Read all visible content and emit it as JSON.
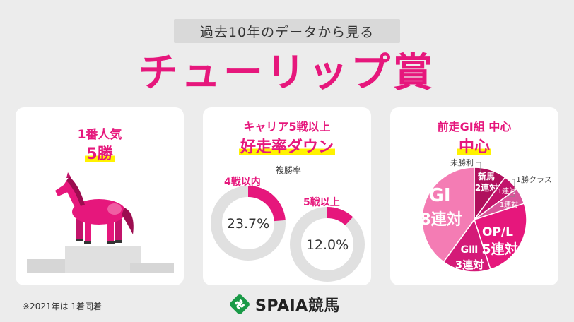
{
  "header": {
    "subtitle": "過去10年のデータから見る",
    "title": "チューリップ賞"
  },
  "panel_favorite": {
    "line1": "1番人気",
    "line2": "5勝",
    "icon": "horse-on-podium-icon"
  },
  "panel_career": {
    "line1": "キャリア5戦以上",
    "line2": "好走率ダウン",
    "metric_label": "複勝率",
    "rings": [
      {
        "label": "4戦以内",
        "value_text": "23.7%",
        "value": 23.7
      },
      {
        "label": "5戦以上",
        "value_text": "12.0%",
        "value": 12.0
      }
    ]
  },
  "panel_prev_race": {
    "line1": "前走GⅠ組 中心",
    "line2": "中心",
    "chart_data": {
      "type": "pie",
      "unit": "連対",
      "slices": [
        {
          "name": "GⅠ",
          "value_text": "8連対",
          "value": 8,
          "color": "#f47cb4"
        },
        {
          "name": "OP/L",
          "value_text": "5連対",
          "value": 5,
          "color": "#e6177c"
        },
        {
          "name": "GⅢ",
          "value_text": "3連対",
          "value": 3,
          "color": "#d41a78"
        },
        {
          "name": "新馬",
          "value_text": "2連対",
          "value": 2,
          "color": "#b0105d"
        },
        {
          "name": "未勝利",
          "value_text": "1連対",
          "value": 1,
          "color": "#c2146b"
        },
        {
          "name": "1勝クラス",
          "value_text": "1連対",
          "value": 1,
          "color": "#d9559a"
        }
      ]
    }
  },
  "footnote": "※2021年は 1着同着",
  "brand": {
    "name": "SPAIA競馬",
    "color": "#1a9a47"
  },
  "colors": {
    "accent": "#e6177c",
    "highlight": "#fff200"
  }
}
